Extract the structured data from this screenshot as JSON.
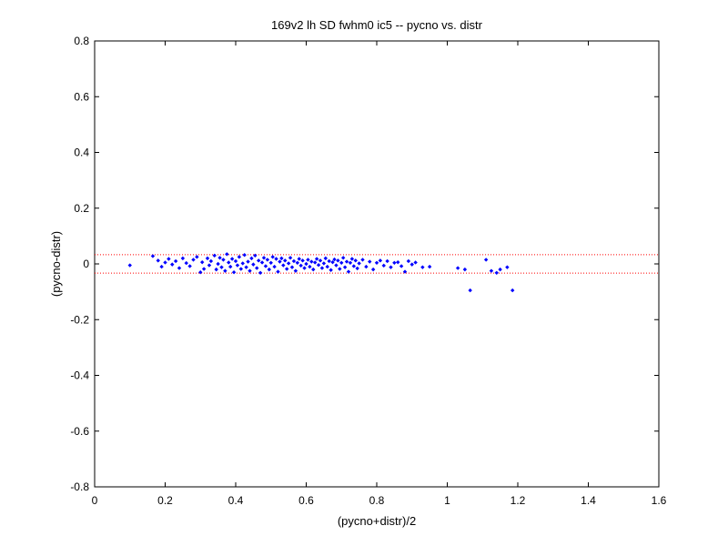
{
  "chart_data": {
    "type": "scatter",
    "title": "169v2 lh SD fwhm0 ic5 -- pycno vs. distr",
    "xlabel": "(pycno+distr)/2",
    "ylabel": "(pycno-distr)",
    "xlim": [
      0,
      1.6
    ],
    "ylim": [
      -0.8,
      0.8
    ],
    "xticks": [
      0,
      0.2,
      0.4,
      0.6,
      0.8,
      1,
      1.2,
      1.4,
      1.6
    ],
    "yticks": [
      -0.8,
      -0.6,
      -0.4,
      -0.2,
      0,
      0.2,
      0.4,
      0.6,
      0.8
    ],
    "xtick_labels": [
      "0",
      "0.2",
      "0.4",
      "0.6",
      "0.8",
      "1",
      "1.2",
      "1.4",
      "1.6"
    ],
    "ytick_labels": [
      "-0.8",
      "-0.6",
      "-0.4",
      "-0.2",
      "0",
      "0.2",
      "0.4",
      "0.6",
      "0.8"
    ],
    "grid": false,
    "colors": {
      "points": "#0000ff",
      "reference_lines": "#ff0000",
      "axes": "#000000"
    },
    "reference_lines": [
      {
        "y": 0.033,
        "style": "dotted",
        "color": "#ff0000"
      },
      {
        "y": -0.033,
        "style": "dotted",
        "color": "#ff0000"
      }
    ],
    "series": [
      {
        "marker": "dot",
        "color": "#0000ff",
        "points": [
          [
            0.1,
            -0.005
          ],
          [
            0.165,
            0.028
          ],
          [
            0.18,
            0.012
          ],
          [
            0.19,
            -0.01
          ],
          [
            0.2,
            0.005
          ],
          [
            0.21,
            0.018
          ],
          [
            0.22,
            -0.002
          ],
          [
            0.23,
            0.01
          ],
          [
            0.24,
            -0.015
          ],
          [
            0.25,
            0.02
          ],
          [
            0.26,
            0.003
          ],
          [
            0.27,
            -0.008
          ],
          [
            0.28,
            0.015
          ],
          [
            0.29,
            0.025
          ],
          [
            0.3,
            -0.03
          ],
          [
            0.305,
            0.006
          ],
          [
            0.31,
            -0.018
          ],
          [
            0.32,
            0.02
          ],
          [
            0.325,
            -0.005
          ],
          [
            0.33,
            0.01
          ],
          [
            0.34,
            0.03
          ],
          [
            0.345,
            -0.02
          ],
          [
            0.35,
            0.0
          ],
          [
            0.355,
            0.022
          ],
          [
            0.36,
            -0.012
          ],
          [
            0.365,
            0.015
          ],
          [
            0.37,
            -0.025
          ],
          [
            0.375,
            0.035
          ],
          [
            0.38,
            0.005
          ],
          [
            0.385,
            -0.01
          ],
          [
            0.39,
            0.018
          ],
          [
            0.395,
            -0.03
          ],
          [
            0.4,
            0.01
          ],
          [
            0.405,
            -0.005
          ],
          [
            0.41,
            0.025
          ],
          [
            0.415,
            -0.018
          ],
          [
            0.42,
            0.002
          ],
          [
            0.425,
            0.032
          ],
          [
            0.43,
            -0.012
          ],
          [
            0.435,
            0.008
          ],
          [
            0.44,
            -0.025
          ],
          [
            0.445,
            0.02
          ],
          [
            0.45,
            -0.002
          ],
          [
            0.455,
            0.03
          ],
          [
            0.46,
            -0.015
          ],
          [
            0.465,
            0.012
          ],
          [
            0.47,
            -0.032
          ],
          [
            0.475,
            0.005
          ],
          [
            0.48,
            0.022
          ],
          [
            0.485,
            -0.008
          ],
          [
            0.49,
            0.015
          ],
          [
            0.495,
            -0.02
          ],
          [
            0.5,
            0.004
          ],
          [
            0.505,
            0.025
          ],
          [
            0.51,
            -0.01
          ],
          [
            0.515,
            0.018
          ],
          [
            0.52,
            -0.028
          ],
          [
            0.525,
            0.008
          ],
          [
            0.53,
            0.02
          ],
          [
            0.535,
            -0.005
          ],
          [
            0.54,
            0.012
          ],
          [
            0.545,
            -0.018
          ],
          [
            0.55,
            0.002
          ],
          [
            0.555,
            0.022
          ],
          [
            0.56,
            -0.012
          ],
          [
            0.565,
            0.01
          ],
          [
            0.57,
            -0.025
          ],
          [
            0.575,
            0.004
          ],
          [
            0.58,
            0.018
          ],
          [
            0.585,
            -0.006
          ],
          [
            0.59,
            0.012
          ],
          [
            0.595,
            -0.015
          ],
          [
            0.6,
            0.0
          ],
          [
            0.605,
            0.015
          ],
          [
            0.61,
            -0.01
          ],
          [
            0.615,
            0.008
          ],
          [
            0.62,
            -0.02
          ],
          [
            0.625,
            0.005
          ],
          [
            0.63,
            0.018
          ],
          [
            0.635,
            -0.004
          ],
          [
            0.64,
            0.012
          ],
          [
            0.645,
            -0.015
          ],
          [
            0.65,
            0.002
          ],
          [
            0.655,
            0.02
          ],
          [
            0.66,
            -0.01
          ],
          [
            0.665,
            0.01
          ],
          [
            0.67,
            -0.022
          ],
          [
            0.675,
            0.006
          ],
          [
            0.68,
            0.016
          ],
          [
            0.685,
            -0.005
          ],
          [
            0.69,
            0.012
          ],
          [
            0.695,
            -0.018
          ],
          [
            0.7,
            0.004
          ],
          [
            0.705,
            0.022
          ],
          [
            0.71,
            -0.012
          ],
          [
            0.715,
            0.008
          ],
          [
            0.72,
            -0.028
          ],
          [
            0.725,
            0.004
          ],
          [
            0.73,
            0.018
          ],
          [
            0.735,
            -0.008
          ],
          [
            0.74,
            0.012
          ],
          [
            0.745,
            -0.016
          ],
          [
            0.75,
            0.002
          ],
          [
            0.76,
            0.015
          ],
          [
            0.77,
            -0.01
          ],
          [
            0.78,
            0.008
          ],
          [
            0.79,
            -0.02
          ],
          [
            0.8,
            0.004
          ],
          [
            0.81,
            0.012
          ],
          [
            0.82,
            -0.006
          ],
          [
            0.83,
            0.01
          ],
          [
            0.84,
            -0.012
          ],
          [
            0.85,
            0.004
          ],
          [
            0.86,
            0.006
          ],
          [
            0.87,
            -0.008
          ],
          [
            0.88,
            -0.028
          ],
          [
            0.89,
            0.01
          ],
          [
            0.9,
            -0.002
          ],
          [
            0.91,
            0.005
          ],
          [
            0.93,
            -0.012
          ],
          [
            0.95,
            -0.01
          ],
          [
            1.03,
            -0.015
          ],
          [
            1.05,
            -0.02
          ],
          [
            1.065,
            -0.095
          ],
          [
            1.11,
            0.015
          ],
          [
            1.125,
            -0.025
          ],
          [
            1.14,
            -0.032
          ],
          [
            1.15,
            -0.02
          ],
          [
            1.17,
            -0.012
          ],
          [
            1.185,
            -0.095
          ]
        ]
      }
    ]
  }
}
